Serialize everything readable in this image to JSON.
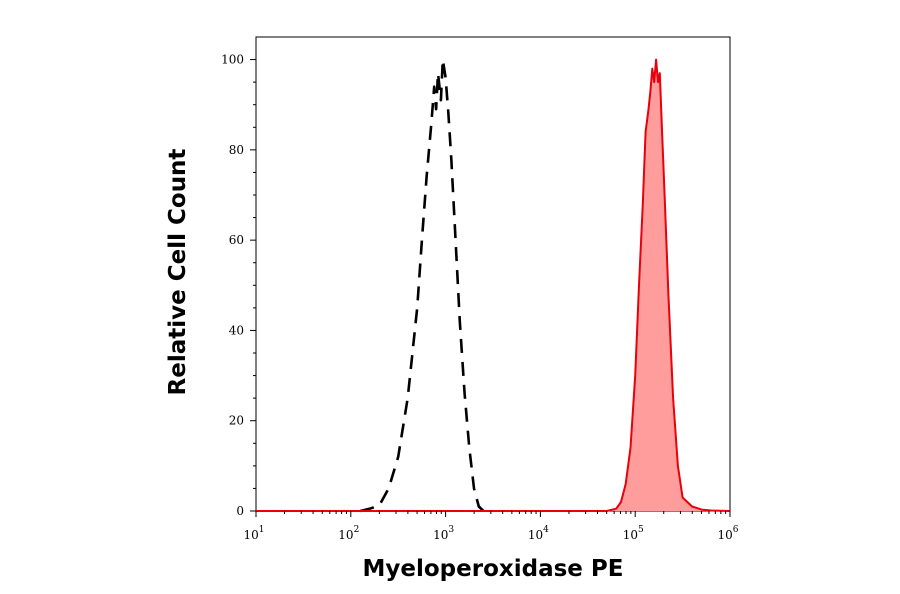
{
  "chart_data": {
    "type": "area",
    "xlabel": "Myeloperoxidase PE",
    "ylabel": "Relative Cell Count",
    "x_scale": "log",
    "xlim": [
      1,
      6
    ],
    "ylim": [
      0,
      105
    ],
    "x_ticks": [
      {
        "base": "10",
        "exp": "1",
        "value": 1
      },
      {
        "base": "10",
        "exp": "2",
        "value": 2
      },
      {
        "base": "10",
        "exp": "3",
        "value": 3
      },
      {
        "base": "10",
        "exp": "4",
        "value": 4
      },
      {
        "base": "10",
        "exp": "5",
        "value": 5
      },
      {
        "base": "10",
        "exp": "6",
        "value": 6
      }
    ],
    "y_ticks": [
      "0",
      "20",
      "40",
      "60",
      "80",
      "100"
    ],
    "grid": false,
    "series": [
      {
        "style": "dashed",
        "color": "#000000",
        "filled": false,
        "points": [
          [
            2.1,
            0
          ],
          [
            2.2,
            0.5
          ],
          [
            2.3,
            1.2
          ],
          [
            2.4,
            5
          ],
          [
            2.5,
            12
          ],
          [
            2.6,
            25
          ],
          [
            2.7,
            45
          ],
          [
            2.75,
            60
          ],
          [
            2.8,
            74
          ],
          [
            2.85,
            86
          ],
          [
            2.88,
            94
          ],
          [
            2.9,
            89
          ],
          [
            2.92,
            97
          ],
          [
            2.95,
            91
          ],
          [
            2.97,
            100
          ],
          [
            3.0,
            96
          ],
          [
            3.03,
            88
          ],
          [
            3.06,
            78
          ],
          [
            3.1,
            62
          ],
          [
            3.15,
            42
          ],
          [
            3.2,
            26
          ],
          [
            3.25,
            14
          ],
          [
            3.3,
            5
          ],
          [
            3.35,
            1
          ],
          [
            3.4,
            0
          ]
        ]
      },
      {
        "style": "solid",
        "color": "#e8000b",
        "fill_color": "#ff9c9c",
        "filled": true,
        "points": [
          [
            1.0,
            0
          ],
          [
            4.7,
            0
          ],
          [
            4.8,
            0.5
          ],
          [
            4.85,
            2
          ],
          [
            4.9,
            6
          ],
          [
            4.95,
            14
          ],
          [
            5.0,
            30
          ],
          [
            5.04,
            50
          ],
          [
            5.08,
            68
          ],
          [
            5.11,
            84
          ],
          [
            5.14,
            89
          ],
          [
            5.16,
            93
          ],
          [
            5.18,
            98
          ],
          [
            5.2,
            95
          ],
          [
            5.22,
            100
          ],
          [
            5.24,
            95
          ],
          [
            5.26,
            97
          ],
          [
            5.28,
            86
          ],
          [
            5.31,
            70
          ],
          [
            5.35,
            48
          ],
          [
            5.4,
            25
          ],
          [
            5.45,
            10
          ],
          [
            5.5,
            3
          ],
          [
            5.6,
            1
          ],
          [
            5.7,
            0.3
          ],
          [
            5.8,
            0.1
          ],
          [
            6.0,
            0
          ]
        ]
      }
    ]
  }
}
